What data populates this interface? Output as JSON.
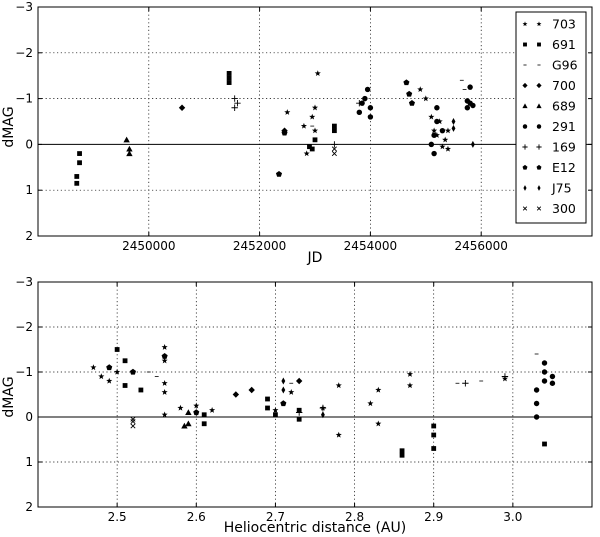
{
  "chart_data": [
    {
      "type": "scatter",
      "xlabel": "JD",
      "ylabel": "dMAG",
      "xlim": [
        2448000,
        2458000
      ],
      "ylim": [
        2,
        -3
      ],
      "y_inverted": true,
      "xticks": [
        2450000,
        2452000,
        2454000,
        2456000
      ],
      "xtick_labels": [
        "2450000",
        "2452000",
        "2454000",
        "2456000"
      ],
      "yticks": [
        -3,
        -2,
        -1,
        0,
        1,
        2
      ],
      "ytick_labels": [
        "−3",
        "−2",
        "−1",
        "0",
        "1",
        "2"
      ],
      "grid": true,
      "zero_line": true,
      "legend_position": "top-right",
      "series": [
        {
          "name": "703",
          "marker": "star",
          "points": [
            [
              2452500,
              -0.7
            ],
            [
              2452800,
              -0.4
            ],
            [
              2452850,
              0.2
            ],
            [
              2452950,
              -0.6
            ],
            [
              2453000,
              -0.3
            ],
            [
              2453000,
              -0.8
            ],
            [
              2453050,
              -1.55
            ],
            [
              2454900,
              -1.2
            ],
            [
              2455000,
              -1.0
            ],
            [
              2455100,
              -0.6
            ],
            [
              2455150,
              -0.3
            ],
            [
              2455200,
              -0.2
            ],
            [
              2455250,
              -0.5
            ],
            [
              2455300,
              0.05
            ],
            [
              2455350,
              -0.1
            ],
            [
              2455400,
              -0.3
            ],
            [
              2455400,
              0.1
            ]
          ]
        },
        {
          "name": "691",
          "marker": "square",
          "points": [
            [
              2448750,
              0.2
            ],
            [
              2448750,
              0.4
            ],
            [
              2448700,
              0.7
            ],
            [
              2448700,
              0.85
            ],
            [
              2451450,
              -1.55
            ],
            [
              2451450,
              -1.45
            ],
            [
              2451450,
              -1.35
            ],
            [
              2452900,
              0.05
            ],
            [
              2452950,
              0.1
            ],
            [
              2453000,
              -0.1
            ],
            [
              2453350,
              -0.3
            ],
            [
              2453350,
              -0.4
            ]
          ]
        },
        {
          "name": "G96",
          "marker": "tick",
          "points": [
            [
              2452950,
              -0.4
            ],
            [
              2455650,
              -1.4
            ],
            [
              2455700,
              -1.2
            ]
          ]
        },
        {
          "name": "700",
          "marker": "diamond",
          "points": [
            [
              2450600,
              -0.8
            ],
            [
              2452450,
              -0.3
            ]
          ]
        },
        {
          "name": "689",
          "marker": "triangle",
          "points": [
            [
              2449600,
              -0.1
            ],
            [
              2449650,
              0.1
            ],
            [
              2449650,
              0.2
            ]
          ]
        },
        {
          "name": "291",
          "marker": "circle",
          "points": [
            [
              2453800,
              -0.7
            ],
            [
              2453850,
              -0.9
            ],
            [
              2453900,
              -1.0
            ],
            [
              2453950,
              -1.2
            ],
            [
              2454000,
              -0.8
            ],
            [
              2454000,
              -0.6
            ],
            [
              2455100,
              0.0
            ],
            [
              2455150,
              -0.2
            ],
            [
              2455150,
              0.2
            ],
            [
              2455200,
              -0.5
            ],
            [
              2455200,
              -0.8
            ],
            [
              2455300,
              -0.3
            ],
            [
              2455750,
              -0.95
            ],
            [
              2455750,
              -0.8
            ],
            [
              2455800,
              -1.25
            ],
            [
              2455800,
              -0.9
            ],
            [
              2455850,
              -0.85
            ]
          ]
        },
        {
          "name": "169",
          "marker": "plus",
          "points": [
            [
              2451550,
              -0.8
            ],
            [
              2451550,
              -1.0
            ],
            [
              2451600,
              -0.9
            ],
            [
              2453350,
              0.0
            ],
            [
              2453800,
              -0.9
            ]
          ]
        },
        {
          "name": "E12",
          "marker": "pentagon",
          "points": [
            [
              2452350,
              0.65
            ],
            [
              2452450,
              -0.25
            ],
            [
              2454650,
              -1.35
            ],
            [
              2454700,
              -1.1
            ],
            [
              2454750,
              -0.9
            ]
          ]
        },
        {
          "name": "J75",
          "marker": "thin-diamond",
          "points": [
            [
              2455500,
              -0.35
            ],
            [
              2455500,
              -0.5
            ],
            [
              2455850,
              0.0
            ]
          ]
        },
        {
          "name": "300",
          "marker": "x",
          "points": [
            [
              2453350,
              0.1
            ],
            [
              2453350,
              0.2
            ]
          ]
        }
      ]
    },
    {
      "type": "scatter",
      "xlabel": "Heliocentric distance (AU)",
      "ylabel": "dMAG",
      "xlim": [
        2.4,
        3.1
      ],
      "ylim": [
        2,
        -3
      ],
      "y_inverted": true,
      "xticks": [
        2.5,
        2.6,
        2.7,
        2.8,
        2.9,
        3.0
      ],
      "xtick_labels": [
        "2.5",
        "2.6",
        "2.7",
        "2.8",
        "2.9",
        "3.0"
      ],
      "yticks": [
        -3,
        -2,
        -1,
        0,
        1,
        2
      ],
      "ytick_labels": [
        "−3",
        "−2",
        "−1",
        "0",
        "1",
        "2"
      ],
      "grid": true,
      "zero_line": true,
      "series": [
        {
          "name": "703",
          "marker": "star",
          "points": [
            [
              2.47,
              -1.1
            ],
            [
              2.48,
              -0.9
            ],
            [
              2.49,
              -0.8
            ],
            [
              2.5,
              -1.0
            ],
            [
              2.56,
              -1.55
            ],
            [
              2.56,
              -1.25
            ],
            [
              2.56,
              -0.75
            ],
            [
              2.56,
              -0.55
            ],
            [
              2.56,
              -0.05
            ],
            [
              2.58,
              -0.2
            ],
            [
              2.6,
              -0.25
            ],
            [
              2.62,
              -0.15
            ],
            [
              2.7,
              -0.15
            ],
            [
              2.72,
              -0.55
            ],
            [
              2.76,
              -0.2
            ],
            [
              2.78,
              -0.7
            ],
            [
              2.78,
              0.4
            ],
            [
              2.82,
              -0.3
            ],
            [
              2.83,
              -0.6
            ],
            [
              2.83,
              0.15
            ],
            [
              2.87,
              -0.95
            ],
            [
              2.87,
              -0.7
            ],
            [
              2.99,
              -0.85
            ]
          ]
        },
        {
          "name": "691",
          "marker": "square",
          "points": [
            [
              2.5,
              -1.5
            ],
            [
              2.51,
              -1.25
            ],
            [
              2.51,
              -0.7
            ],
            [
              2.53,
              -0.6
            ],
            [
              2.61,
              -0.05
            ],
            [
              2.61,
              0.15
            ],
            [
              2.69,
              -0.4
            ],
            [
              2.69,
              -0.2
            ],
            [
              2.7,
              -0.05
            ],
            [
              2.73,
              -0.15
            ],
            [
              2.73,
              0.05
            ],
            [
              2.86,
              0.75
            ],
            [
              2.86,
              0.85
            ],
            [
              2.9,
              0.2
            ],
            [
              2.9,
              0.4
            ],
            [
              2.9,
              0.7
            ],
            [
              3.04,
              0.6
            ]
          ]
        },
        {
          "name": "G96",
          "marker": "tick",
          "points": [
            [
              2.54,
              -1.0
            ],
            [
              2.55,
              -0.9
            ],
            [
              2.72,
              -0.75
            ],
            [
              2.93,
              -0.75
            ],
            [
              2.96,
              -0.8
            ],
            [
              3.03,
              -1.4
            ]
          ]
        },
        {
          "name": "700",
          "marker": "diamond",
          "points": [
            [
              2.65,
              -0.5
            ],
            [
              2.67,
              -0.6
            ],
            [
              2.73,
              -0.8
            ]
          ]
        },
        {
          "name": "689",
          "marker": "triangle",
          "points": [
            [
              2.585,
              0.2
            ],
            [
              2.59,
              0.15
            ],
            [
              2.59,
              -0.1
            ]
          ]
        },
        {
          "name": "291",
          "marker": "circle",
          "points": [
            [
              3.03,
              -0.6
            ],
            [
              3.03,
              -0.3
            ],
            [
              3.03,
              0.0
            ],
            [
              3.04,
              -1.2
            ],
            [
              3.04,
              -1.0
            ],
            [
              3.04,
              -0.8
            ],
            [
              3.05,
              -0.9
            ],
            [
              3.05,
              -0.75
            ]
          ]
        },
        {
          "name": "169",
          "marker": "plus",
          "points": [
            [
              2.73,
              -0.1
            ],
            [
              2.76,
              -0.2
            ],
            [
              2.94,
              -0.75
            ],
            [
              2.99,
              -0.9
            ]
          ]
        },
        {
          "name": "E12",
          "marker": "pentagon",
          "points": [
            [
              2.49,
              -1.1
            ],
            [
              2.52,
              -1.0
            ],
            [
              2.56,
              -1.35
            ],
            [
              2.6,
              -0.1
            ],
            [
              2.71,
              -0.3
            ]
          ]
        },
        {
          "name": "J75",
          "marker": "thin-diamond",
          "points": [
            [
              2.71,
              -0.6
            ],
            [
              2.71,
              -0.8
            ],
            [
              2.76,
              -0.05
            ]
          ]
        },
        {
          "name": "300",
          "marker": "x",
          "points": [
            [
              2.52,
              0.1
            ],
            [
              2.52,
              0.2
            ],
            [
              2.52,
              0.05
            ]
          ]
        }
      ]
    }
  ]
}
